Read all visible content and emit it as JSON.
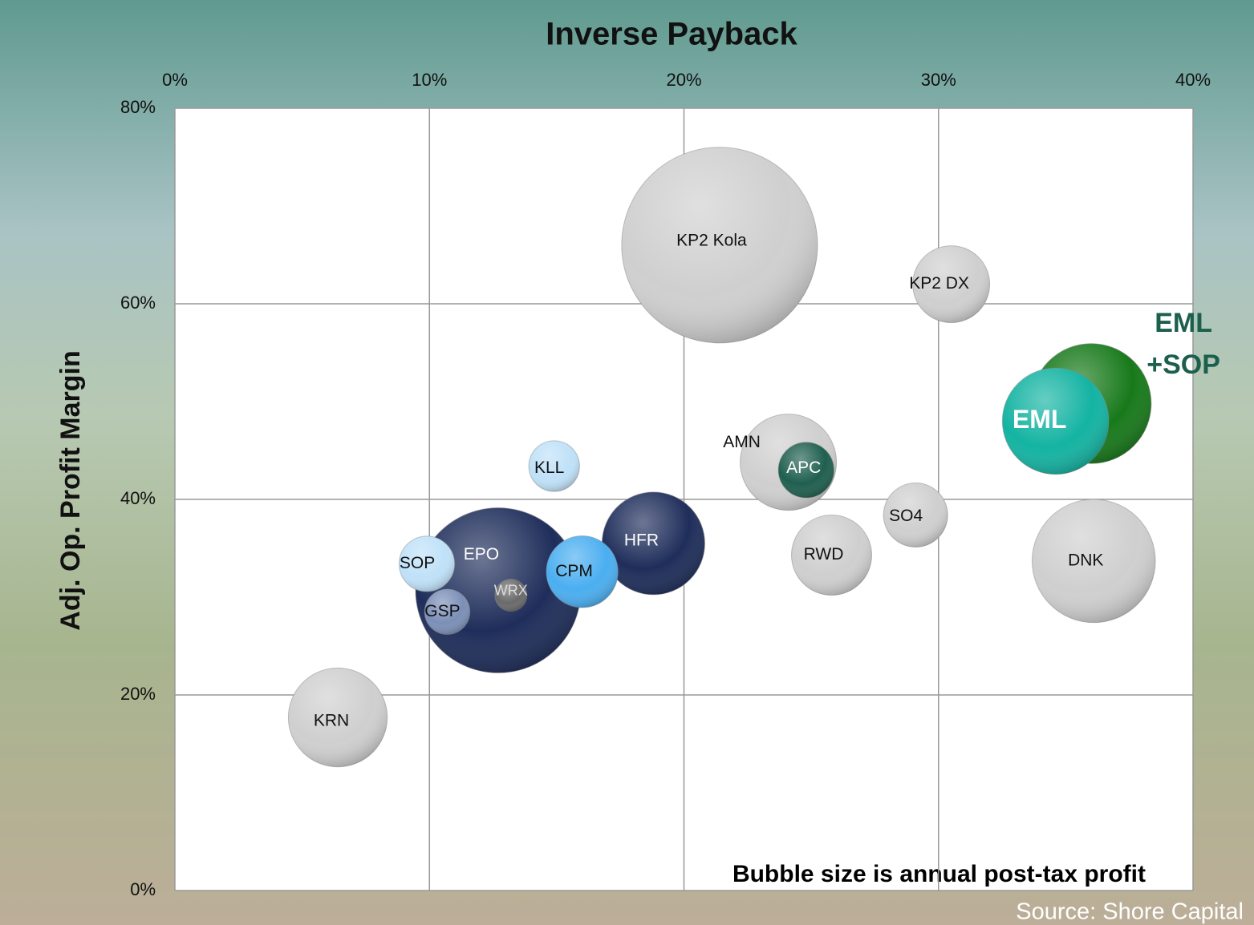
{
  "chart_data": {
    "type": "bubble",
    "title": "Inverse Payback",
    "y_label": "Adj. Op. Profit Margin",
    "note": "Bubble size is annual post-tax profit",
    "source": "Source: Shore Capital",
    "labels": [
      "KP2 Kola",
      "KP2 DX",
      "EML +SOP",
      "EML",
      "AMN",
      "APC",
      "KLL",
      "SO4",
      "EPO",
      "HFR",
      "SOP",
      "CPM",
      "WRX",
      "GSP",
      "RWD",
      "DNK",
      "KRN"
    ],
    "x": [
      21.4,
      30.5,
      36.0,
      34.6,
      24.1,
      24.8,
      14.9,
      29.1,
      12.7,
      18.8,
      9.9,
      16.0,
      13.2,
      10.7,
      25.8,
      36.1,
      6.4
    ],
    "values": [
      66.0,
      62.0,
      49.8,
      48.0,
      43.8,
      43.0,
      43.4,
      38.4,
      30.7,
      35.5,
      33.4,
      32.6,
      30.2,
      28.5,
      34.3,
      33.7,
      17.7
    ],
    "sizes": [
      149,
      23,
      56,
      44,
      36,
      12,
      10,
      16,
      106,
      41,
      12,
      20,
      4,
      8,
      25,
      59,
      38
    ],
    "colors": [
      "#cfcfcf",
      "#cfcfcf",
      "#17791a",
      "#13b3a2",
      "#cfcfcf",
      "#1f5f4f",
      "#bfe1f8",
      "#cfcfcf",
      "#1e2d5a",
      "#1e2d5a",
      "#bfe1f8",
      "#4aaef0",
      "#6a6a6a",
      "#7b8fb7",
      "#cfcfcf",
      "#cfcfcf",
      "#cfcfcf"
    ],
    "xlim": [
      0,
      40
    ],
    "xticks": [
      {
        "value": 0,
        "label": "0%"
      },
      {
        "value": 10,
        "label": "10%"
      },
      {
        "value": 20,
        "label": "20%"
      },
      {
        "value": 30,
        "label": "30%"
      },
      {
        "value": 40,
        "label": "40%"
      }
    ],
    "ylim": [
      0,
      80
    ],
    "yticks": [
      {
        "value": 0,
        "label": "0%"
      },
      {
        "value": 20,
        "label": "20%"
      },
      {
        "value": 40,
        "label": "40%"
      },
      {
        "value": 60,
        "label": "60%"
      },
      {
        "value": 80,
        "label": "80%"
      }
    ],
    "grid": true
  }
}
